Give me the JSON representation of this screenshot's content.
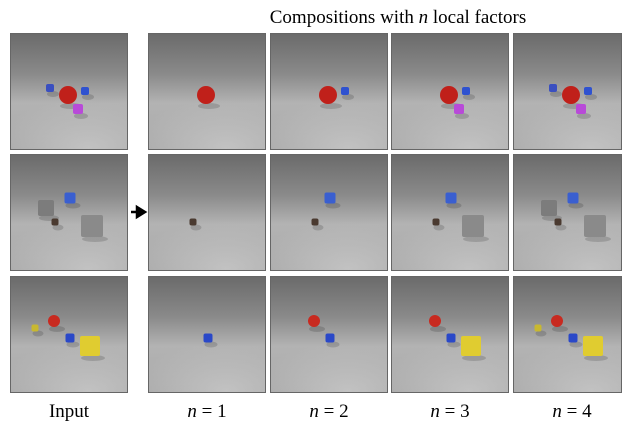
{
  "title": {
    "prefix": "Compositions with",
    "variable": "n",
    "suffix": "local factors"
  },
  "columns": [
    {
      "label": "Input"
    },
    {
      "variable": "n",
      "label": "= 1"
    },
    {
      "variable": "n",
      "label": "= 2"
    },
    {
      "variable": "n",
      "label": "= 3"
    },
    {
      "variable": "n",
      "label": "= 4"
    }
  ]
}
